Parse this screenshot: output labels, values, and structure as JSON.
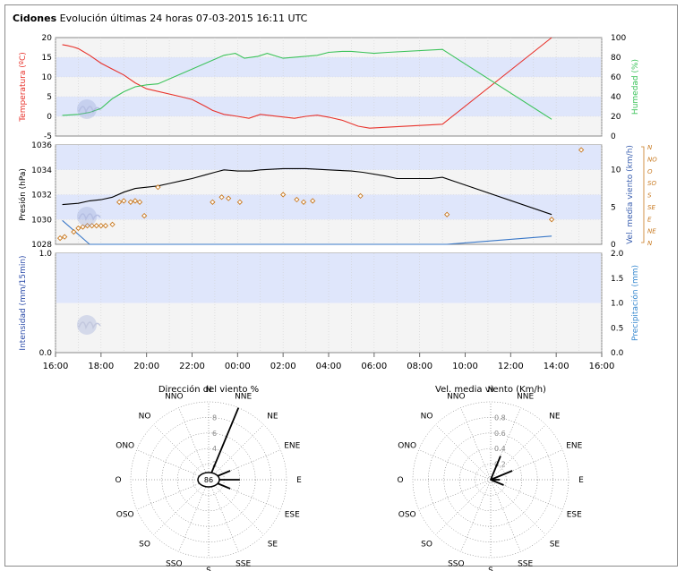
{
  "header": {
    "station": "Cidones",
    "subtitle": "Evolución últimas 24 horas 07-03-2015 16:11 UTC"
  },
  "colors": {
    "temperature": "#e8322b",
    "humidity": "#3cc35a",
    "pressure": "#000000",
    "wind_speed": "#3a78c8",
    "wind_dir": "#c8781e",
    "band": "#dfe6fb",
    "plot_bg": "#f4f4f4"
  },
  "x_axis_labels": [
    "16:00",
    "18:00",
    "20:00",
    "22:00",
    "00:00",
    "02:00",
    "04:00",
    "06:00",
    "08:00",
    "10:00",
    "12:00",
    "14:00",
    "16:00"
  ],
  "chart_data": [
    {
      "type": "line",
      "id": "temp-humidity",
      "ylabel": "Temperatura (ºC)",
      "y2label": "Humedad (%)",
      "ylim": [
        -5,
        20
      ],
      "y2lim": [
        0,
        100
      ],
      "yticks": [
        "20",
        "15",
        "10",
        "5",
        "0",
        "-5"
      ],
      "y2ticks": [
        "100",
        "80",
        "60",
        "40",
        "20",
        "0"
      ],
      "series": [
        {
          "name": "Temperatura (ºC)",
          "axis": "left",
          "x": [
            0.3,
            0.5,
            0.8,
            1.0,
            1.5,
            2.0,
            2.5,
            3.0,
            3.5,
            4.0,
            5.5,
            6.0,
            6.6,
            6.9,
            7.4,
            8.0,
            8.5,
            9.0,
            10.5,
            11.0,
            11.5,
            12.0,
            12.6,
            13.3,
            13.8,
            17.0,
            21.8
          ],
          "y": [
            18.2,
            18.0,
            17.6,
            17.2,
            15.5,
            13.5,
            12.0,
            10.5,
            8.5,
            7.0,
            5.0,
            4.3,
            2.5,
            1.5,
            0.5,
            0.0,
            -0.5,
            0.5,
            -0.5,
            0.0,
            0.3,
            -0.2,
            -1.0,
            -2.5,
            -3.0,
            -2.0,
            20.0
          ]
        },
        {
          "name": "Humedad (%)",
          "axis": "right",
          "x": [
            0.3,
            1.0,
            1.5,
            2.0,
            2.5,
            3.0,
            3.5,
            4.0,
            4.5,
            7.4,
            7.9,
            8.3,
            8.9,
            9.3,
            10.0,
            11.5,
            12.0,
            12.6,
            13.0,
            13.5,
            14.0,
            14.6,
            17.0,
            21.8
          ],
          "y": [
            21,
            22,
            24,
            28,
            38,
            45,
            50,
            52,
            53,
            82,
            84,
            79,
            81,
            84,
            79,
            82,
            85,
            86,
            86,
            85,
            84,
            85,
            88,
            17
          ]
        }
      ]
    },
    {
      "type": "line",
      "id": "pressure-wind",
      "ylabel": "Presión (hPa)",
      "y2label": "Vel. media viento (km/h)",
      "ylim": [
        1028,
        1036
      ],
      "y2lim": [
        0,
        13.3
      ],
      "yticks": [
        "1036",
        "1034",
        "1032",
        "1030",
        "1028"
      ],
      "y2ticks": [
        "10",
        "5",
        "0"
      ],
      "dir_labels": [
        "N",
        "NO",
        "O",
        "SO",
        "S",
        "SE",
        "E",
        "NE",
        "N"
      ],
      "series": [
        {
          "name": "Presión (hPa)",
          "axis": "left",
          "x": [
            0.3,
            1.0,
            1.5,
            2.0,
            2.5,
            3.0,
            3.5,
            4.0,
            4.5,
            5.0,
            5.5,
            6.0,
            6.6,
            7.0,
            7.4,
            8.0,
            8.6,
            9.0,
            10.0,
            11.0,
            12.0,
            13.0,
            13.5,
            14.5,
            15.0,
            16.5,
            17.0,
            21.8
          ],
          "y": [
            1031.2,
            1031.3,
            1031.5,
            1031.6,
            1031.8,
            1032.2,
            1032.5,
            1032.6,
            1032.7,
            1032.9,
            1033.1,
            1033.3,
            1033.6,
            1033.8,
            1034.0,
            1033.9,
            1033.9,
            1034.0,
            1034.1,
            1034.1,
            1034.0,
            1033.9,
            1033.8,
            1033.5,
            1033.3,
            1033.3,
            1033.4,
            1030.4
          ]
        },
        {
          "name": "Vel. media viento (km/h)",
          "axis": "right",
          "x": [
            0.3,
            1.5,
            17.2,
            21.8
          ],
          "y": [
            3.2,
            0.0,
            0.0,
            1.1
          ]
        },
        {
          "name": "Dirección viento",
          "axis": "dir",
          "style": "markers",
          "x": [
            0.2,
            0.4,
            0.8,
            1.0,
            1.2,
            1.4,
            1.6,
            1.8,
            2.0,
            2.2,
            2.5,
            2.8,
            3.0,
            3.3,
            3.5,
            3.7,
            3.9,
            4.5,
            6.9,
            7.3,
            7.6,
            8.1,
            10.0,
            10.6,
            10.9,
            11.3,
            13.4,
            17.2,
            21.8,
            23.1
          ],
          "y": [
            0.5,
            0.6,
            1.0,
            1.3,
            1.4,
            1.5,
            1.5,
            1.5,
            1.5,
            1.5,
            1.6,
            3.4,
            3.5,
            3.4,
            3.5,
            3.4,
            2.3,
            4.6,
            3.4,
            3.8,
            3.7,
            3.4,
            4.0,
            3.6,
            3.4,
            3.5,
            3.9,
            2.4,
            2.0,
            7.6
          ]
        }
      ]
    },
    {
      "type": "line",
      "id": "precipitation",
      "ylabel": "Intensidad (mm/15min)",
      "y2label": "Precipitación (mm)",
      "ylim": [
        0,
        1
      ],
      "y2lim": [
        0,
        2
      ],
      "yticks": [
        "1.0",
        "0.0"
      ],
      "y2ticks": [
        "2.0",
        "1.5",
        "1.0",
        "0.5",
        "0.0"
      ],
      "series": []
    },
    {
      "type": "polar",
      "id": "wind-direction",
      "title": "Dirección del viento %",
      "directions": [
        "N",
        "NNE",
        "NE",
        "ENE",
        "E",
        "ESE",
        "SE",
        "SSE",
        "S",
        "SSO",
        "SO",
        "OSO",
        "O",
        "ONO",
        "NO",
        "NNO"
      ],
      "values": [
        0,
        10,
        0,
        3,
        4,
        3,
        0,
        0,
        0,
        0,
        0,
        0,
        0,
        0,
        0,
        0
      ],
      "rlim": [
        0,
        10
      ],
      "rings_labels": [
        "2",
        "4",
        "6",
        "8"
      ],
      "center_label": "86"
    },
    {
      "type": "polar",
      "id": "wind-speed",
      "title": "Vel. media viento (Km/h)",
      "directions": [
        "N",
        "NNE",
        "NE",
        "ENE",
        "E",
        "ESE",
        "SE",
        "SSE",
        "S",
        "SSO",
        "SO",
        "OSO",
        "O",
        "ONO",
        "NO",
        "NNO"
      ],
      "values": [
        0,
        0.33,
        0,
        0.3,
        0.12,
        0.18,
        0,
        0,
        0,
        0,
        0,
        0,
        0,
        0,
        0,
        0
      ],
      "rlim": [
        0,
        1.0
      ],
      "rings_labels": [
        "0.2",
        "0.4",
        "0.6",
        "0.8"
      ],
      "center_label": ""
    }
  ]
}
